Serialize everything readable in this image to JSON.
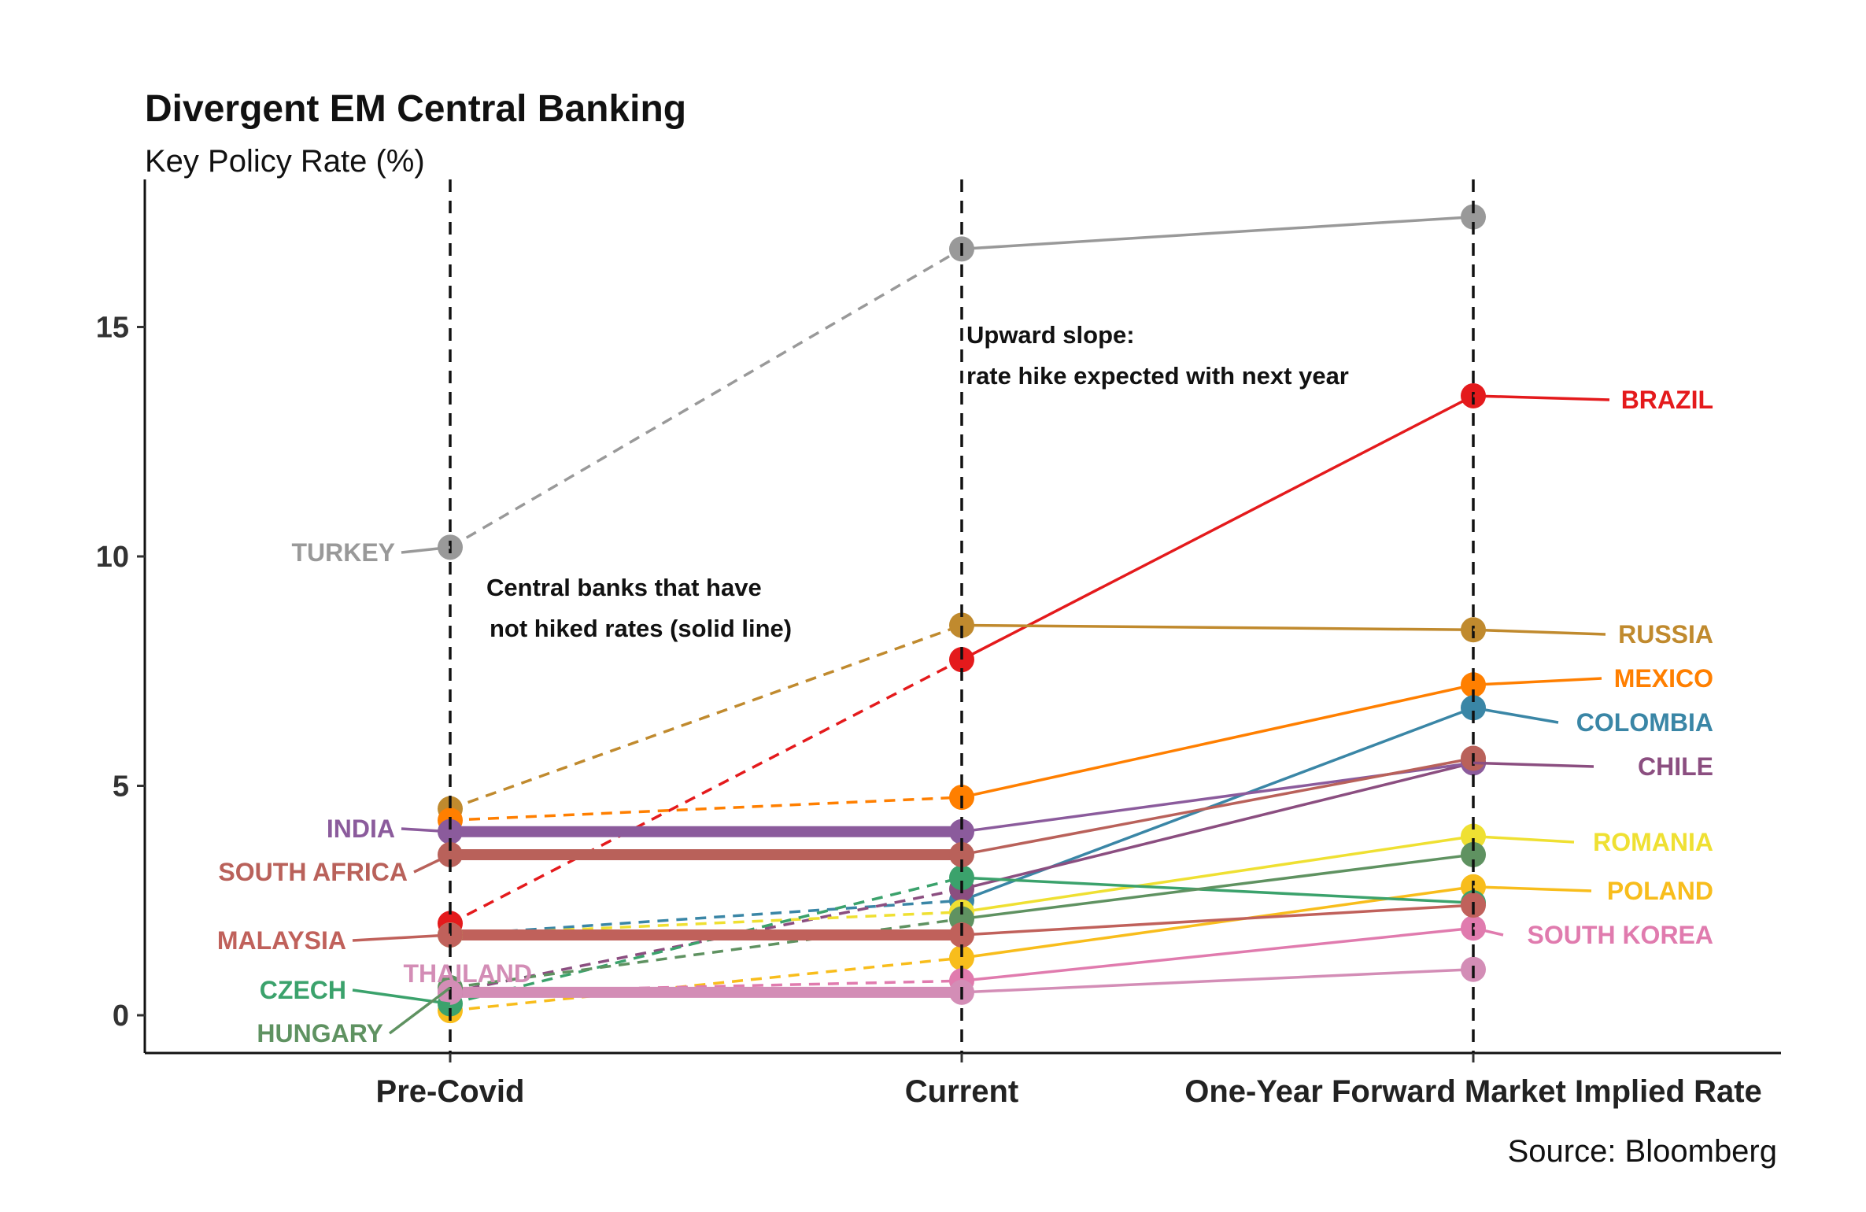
{
  "chart_data": {
    "type": "line",
    "title": "Divergent EM Central Banking",
    "subtitle": "Key Policy Rate (%)",
    "source": "Source: Bloomberg",
    "categories": [
      "Pre-Covid",
      "Current",
      "One-Year Forward Market Implied Rate"
    ],
    "yticks": [
      0,
      5,
      10,
      15
    ],
    "ylim": [
      -0.75,
      18.5
    ],
    "grid": false,
    "line_styles": {
      "pre_covid_to_current": "dashed",
      "current_to_forward": "solid",
      "not_hiked": "thick solid"
    },
    "annotations": [
      [
        "Upward slope:",
        "rate hike expected with next year"
      ],
      [
        "Central banks that have",
        "not hiked rates (solid line)"
      ]
    ],
    "series": [
      {
        "name": "TURKEY",
        "color": "#999999",
        "values": [
          10.2,
          16.7,
          17.4
        ],
        "hiked": true,
        "label_at": "start"
      },
      {
        "name": "BRAZIL",
        "color": "#E41A1C",
        "values": [
          2.0,
          7.75,
          13.5
        ],
        "hiked": true,
        "label_at": "end"
      },
      {
        "name": "RUSSIA",
        "color": "#C08A2E",
        "values": [
          4.5,
          8.5,
          8.4
        ],
        "hiked": true,
        "label_at": "end"
      },
      {
        "name": "MEXICO",
        "color": "#FF7F00",
        "values": [
          4.25,
          4.75,
          7.2
        ],
        "hiked": true,
        "label_at": "end"
      },
      {
        "name": "COLOMBIA",
        "color": "#3A86A6",
        "values": [
          1.75,
          2.5,
          6.7
        ],
        "hiked": true,
        "label_at": "end"
      },
      {
        "name": "CHILE",
        "color": "#8B4E80",
        "values": [
          0.5,
          2.75,
          5.5
        ],
        "hiked": true,
        "label_at": "end"
      },
      {
        "name": "ROMANIA",
        "color": "#EFE032",
        "values": [
          1.75,
          2.25,
          3.9
        ],
        "hiked": true,
        "label_at": "end"
      },
      {
        "name": "POLAND",
        "color": "#F8BD1C",
        "values": [
          0.1,
          1.25,
          2.8
        ],
        "hiked": true,
        "label_at": "end"
      },
      {
        "name": "SOUTH KOREA",
        "color": "#E07BAE",
        "values": [
          0.5,
          0.75,
          1.9
        ],
        "hiked": true,
        "label_at": "end"
      },
      {
        "name": "CZECH",
        "color": "#3BA26C",
        "values": [
          0.25,
          3.0,
          2.45
        ],
        "hiked": true,
        "label_at": "start"
      },
      {
        "name": "HUNGARY",
        "color": "#5F9261",
        "values": [
          0.6,
          2.1,
          3.5
        ],
        "hiked": true,
        "label_at": "start"
      },
      {
        "name": "INDIA",
        "color": "#8B5B9C",
        "values": [
          4.0,
          4.0,
          5.5
        ],
        "hiked": false,
        "label_at": "start"
      },
      {
        "name": "SOUTH AFRICA",
        "color": "#B9615A",
        "values": [
          3.5,
          3.5,
          5.6
        ],
        "hiked": false,
        "label_at": "start"
      },
      {
        "name": "MALAYSIA",
        "color": "#C0615B",
        "values": [
          1.75,
          1.75,
          2.4
        ],
        "hiked": false,
        "label_at": "start"
      },
      {
        "name": "THAILAND",
        "color": "#D38DB6",
        "values": [
          0.5,
          0.5,
          1.0
        ],
        "hiked": false,
        "label_at": "start"
      }
    ]
  }
}
